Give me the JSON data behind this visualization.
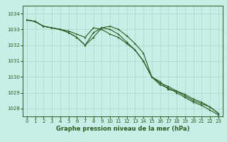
{
  "background_color": "#c8eee8",
  "grid_color": "#aaddcc",
  "line_color": "#2d5a1e",
  "xlabel": "Graphe pression niveau de la mer (hPa)",
  "ylim": [
    1027.5,
    1034.5
  ],
  "xlim": [
    -0.5,
    23.5
  ],
  "yticks": [
    1028,
    1029,
    1030,
    1031,
    1032,
    1033,
    1034
  ],
  "xticks": [
    0,
    1,
    2,
    3,
    4,
    5,
    6,
    7,
    8,
    9,
    10,
    11,
    12,
    13,
    14,
    15,
    16,
    17,
    18,
    19,
    20,
    21,
    22,
    23
  ],
  "series": [
    [
      1033.6,
      1033.5,
      1033.2,
      1033.1,
      1033.0,
      1032.9,
      1032.7,
      1032.5,
      1033.1,
      1033.0,
      1032.7,
      1032.5,
      1032.1,
      1031.7,
      1031.0,
      1030.0,
      1029.7,
      1029.2,
      1029.1,
      1028.9,
      1028.6,
      1028.4,
      1028.1,
      1027.7
    ],
    [
      1033.6,
      1033.5,
      1033.2,
      1033.1,
      1033.0,
      1032.8,
      1032.5,
      1032.0,
      1032.5,
      1033.1,
      1033.2,
      1033.0,
      1032.6,
      1032.1,
      1031.5,
      1030.0,
      1029.6,
      1029.4,
      1029.1,
      1028.8,
      1028.5,
      1028.3,
      1028.1,
      1027.7
    ],
    [
      1033.6,
      1033.5,
      1033.2,
      1033.1,
      1033.0,
      1032.8,
      1032.5,
      1032.0,
      1032.8,
      1033.1,
      1033.0,
      1032.7,
      1032.2,
      1031.7,
      1031.0,
      1030.0,
      1029.5,
      1029.3,
      1029.0,
      1028.7,
      1028.4,
      1028.2,
      1027.9,
      1027.6
    ]
  ],
  "tick_labelsize": 5,
  "xlabel_fontsize": 6,
  "xlabel_fontweight": "bold"
}
